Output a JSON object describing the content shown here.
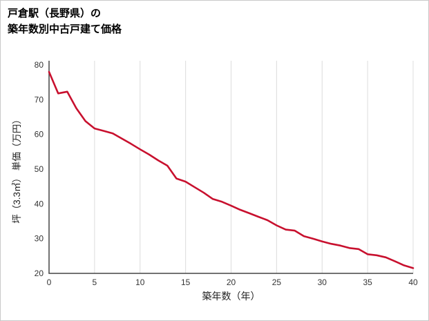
{
  "page": {
    "title_line1": "戸倉駅（長野県）の",
    "title_line2": "築年数別中古戸建て価格"
  },
  "chart_data": {
    "type": "line",
    "title": "戸倉駅（長野県）の築年数別中古戸建て価格",
    "xlabel": "築年数（年）",
    "ylabel": "坪（3.3㎡） 単価（万円）",
    "x": [
      0,
      1,
      2,
      3,
      4,
      5,
      6,
      7,
      8,
      9,
      10,
      11,
      12,
      13,
      14,
      15,
      16,
      17,
      18,
      19,
      20,
      21,
      22,
      23,
      24,
      25,
      26,
      27,
      28,
      29,
      30,
      31,
      32,
      33,
      34,
      35,
      36,
      37,
      38,
      39,
      40
    ],
    "values": [
      78,
      71.8,
      72.3,
      67.5,
      63.8,
      61.7,
      61.0,
      60.3,
      58.8,
      57.3,
      55.7,
      54.2,
      52.5,
      51.0,
      47.3,
      46.4,
      44.8,
      43.2,
      41.4,
      40.6,
      39.5,
      38.3,
      37.3,
      36.3,
      35.3,
      33.8,
      32.6,
      32.3,
      30.7,
      30.0,
      29.2,
      28.5,
      28.0,
      27.3,
      27.0,
      25.5,
      25.2,
      24.6,
      23.5,
      22.3,
      21.5
    ],
    "xlim": [
      0,
      40
    ],
    "ylim": [
      20,
      80
    ],
    "x_ticks": [
      0,
      5,
      10,
      15,
      20,
      25,
      30,
      35,
      40
    ],
    "y_ticks": [
      20,
      30,
      40,
      50,
      60,
      70,
      80
    ],
    "grid": "vertical-only",
    "legend": "none",
    "line_color": "#c8102e",
    "grid_color": "#dcdcdc",
    "axis_color": "#444444"
  }
}
